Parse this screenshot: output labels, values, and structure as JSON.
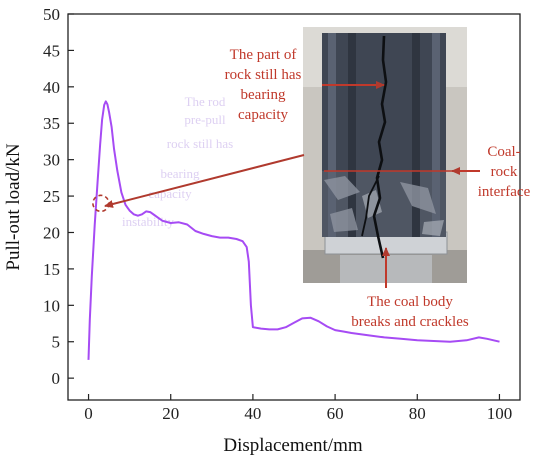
{
  "chart_data": {
    "type": "line",
    "xlabel": "Displacement/mm",
    "ylabel": "Pull-out load/kN",
    "xlim": [
      -5,
      105
    ],
    "ylim": [
      -3,
      50
    ],
    "x_ticks": [
      0,
      20,
      40,
      60,
      80,
      100
    ],
    "y_ticks": [
      0,
      5,
      10,
      15,
      20,
      25,
      30,
      35,
      40,
      45,
      50
    ],
    "grid": false,
    "legend": "none",
    "series": [
      {
        "color": "#a64bf4",
        "x": [
          0,
          0.3,
          0.8,
          1.5,
          2.2,
          2.8,
          3.3,
          3.8,
          4.2,
          4.6,
          5.0,
          5.6,
          6.2,
          7.0,
          8.0,
          9.0,
          10.0,
          11.0,
          12.0,
          13.0,
          14.0,
          15.0,
          16.0,
          17.0,
          18.0,
          20.0,
          22.0,
          24.0,
          26.0,
          28.0,
          30.0,
          32.0,
          34.0,
          36.0,
          37.5,
          38.5,
          39.0,
          39.5,
          40.0,
          42.0,
          44.0,
          46.0,
          48.0,
          50.0,
          52.0,
          54.0,
          56.0,
          58.0,
          60.0,
          62.0,
          64.0,
          68.0,
          72.0,
          76.0,
          80.0,
          84.0,
          88.0,
          92.0,
          95.0,
          97.0,
          100.0
        ],
        "y": [
          2.5,
          8.0,
          14.0,
          21.0,
          27.0,
          32.0,
          35.5,
          37.5,
          38.0,
          37.6,
          36.5,
          34.5,
          31.5,
          28.5,
          25.5,
          23.8,
          23.0,
          22.5,
          22.3,
          22.5,
          22.9,
          22.8,
          22.4,
          22.0,
          21.6,
          21.3,
          21.4,
          21.1,
          20.2,
          19.8,
          19.5,
          19.3,
          19.3,
          19.1,
          18.8,
          18.0,
          16.0,
          10.0,
          7.0,
          6.8,
          6.7,
          6.7,
          7.0,
          7.6,
          8.2,
          8.3,
          7.8,
          7.1,
          6.6,
          6.4,
          6.2,
          5.9,
          5.6,
          5.4,
          5.2,
          5.1,
          5.0,
          5.2,
          5.6,
          5.4,
          5.0
        ]
      }
    ],
    "annotations": {
      "upper": [
        "The part of",
        "rock  still has",
        "bearing",
        "capacity"
      ],
      "right": [
        "Coal-",
        "rock",
        "interface"
      ],
      "bottom": [
        "The coal body",
        "breaks and crackles"
      ]
    },
    "faint_annotation": [
      "The rod",
      "pre-pull",
      "rock  still has",
      "bearing",
      "capacity",
      "instability"
    ],
    "marker_point": [
      3,
      24
    ]
  }
}
